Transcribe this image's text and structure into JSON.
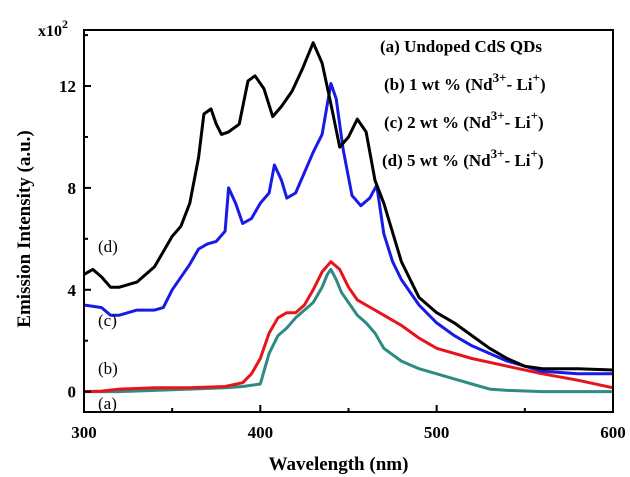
{
  "chart_data": {
    "type": "line",
    "xlabel": "Wavelength (nm)",
    "ylabel": "Emission Intensity (a.u.)",
    "y_multiplier": {
      "base": "x10",
      "exp": "2"
    },
    "xlim": [
      300,
      600
    ],
    "ylim": [
      -0.8,
      14.2
    ],
    "xticks": [
      300,
      400,
      500,
      600
    ],
    "yticks": [
      0,
      4,
      8,
      12
    ],
    "xtick_labels": [
      "300",
      "400",
      "500",
      "600"
    ],
    "ytick_labels": [
      "0",
      "4",
      "8",
      "12"
    ],
    "grid": false,
    "legend_position": "top-right",
    "legend": [
      {
        "text": "(a) Undoped CdS QDs"
      },
      {
        "prefix": "(b) 1 wt % (Nd",
        "sup1": "3+",
        "mid": "- Li",
        "sup2": "+",
        "suffix": ")"
      },
      {
        "prefix": "(c) 2 wt % (Nd",
        "sup1": "3+",
        "mid": "- Li",
        "sup2": "+",
        "suffix": ")"
      },
      {
        "prefix": "(d) 5 wt % (Nd",
        "sup1": "3+",
        "mid": "- Li",
        "sup2": "+",
        "suffix": ")"
      }
    ],
    "curve_labels": [
      "(a)",
      "(b)",
      "(c)",
      "(d)"
    ],
    "series": [
      {
        "id": "a",
        "color": "#2e8b84",
        "x": [
          300,
          320,
          340,
          360,
          380,
          390,
          400,
          405,
          410,
          415,
          420,
          425,
          430,
          435,
          438,
          440,
          443,
          446,
          450,
          455,
          460,
          465,
          470,
          480,
          490,
          500,
          510,
          520,
          530,
          540,
          560,
          580,
          600
        ],
        "y": [
          0.0,
          0.0,
          0.05,
          0.1,
          0.15,
          0.2,
          0.3,
          1.5,
          2.2,
          2.5,
          2.9,
          3.2,
          3.5,
          4.1,
          4.6,
          4.8,
          4.4,
          3.9,
          3.5,
          3.0,
          2.7,
          2.3,
          1.7,
          1.2,
          0.9,
          0.7,
          0.5,
          0.3,
          0.1,
          0.05,
          0.0,
          0.0,
          0.0
        ]
      },
      {
        "id": "b",
        "color": "#e8141c",
        "x": [
          300,
          310,
          320,
          340,
          360,
          380,
          390,
          395,
          400,
          405,
          410,
          415,
          420,
          425,
          430,
          435,
          440,
          445,
          450,
          455,
          460,
          470,
          480,
          490,
          500,
          520,
          540,
          560,
          580,
          600
        ],
        "y": [
          0.0,
          0.02,
          0.1,
          0.15,
          0.15,
          0.2,
          0.35,
          0.7,
          1.3,
          2.3,
          2.9,
          3.1,
          3.1,
          3.4,
          4.0,
          4.7,
          5.1,
          4.8,
          4.1,
          3.6,
          3.4,
          3.0,
          2.6,
          2.1,
          1.7,
          1.3,
          1.0,
          0.7,
          0.45,
          0.15
        ]
      },
      {
        "id": "c",
        "color": "#1a1ae6",
        "x": [
          300,
          310,
          315,
          320,
          330,
          340,
          345,
          350,
          360,
          365,
          370,
          375,
          380,
          382,
          386,
          390,
          395,
          400,
          405,
          408,
          412,
          415,
          420,
          425,
          430,
          435,
          440,
          443,
          447,
          452,
          457,
          462,
          466,
          470,
          475,
          480,
          490,
          500,
          510,
          520,
          540,
          560,
          580,
          600
        ],
        "y": [
          3.4,
          3.3,
          3.0,
          3.0,
          3.2,
          3.2,
          3.3,
          4.0,
          5.0,
          5.6,
          5.8,
          5.9,
          6.3,
          8.0,
          7.4,
          6.6,
          6.8,
          7.4,
          7.8,
          8.9,
          8.3,
          7.6,
          7.8,
          8.6,
          9.4,
          10.1,
          12.1,
          11.5,
          9.5,
          7.7,
          7.3,
          7.6,
          8.1,
          6.2,
          5.1,
          4.4,
          3.4,
          2.7,
          2.2,
          1.8,
          1.2,
          0.8,
          0.7,
          0.7
        ]
      },
      {
        "id": "d",
        "color": "#000000",
        "x": [
          300,
          305,
          310,
          315,
          320,
          330,
          340,
          350,
          355,
          360,
          365,
          368,
          372,
          375,
          378,
          382,
          388,
          393,
          397,
          402,
          407,
          412,
          418,
          424,
          430,
          435,
          440,
          445,
          450,
          455,
          460,
          465,
          470,
          480,
          490,
          500,
          510,
          520,
          530,
          540,
          550,
          560,
          580,
          600
        ],
        "y": [
          4.6,
          4.8,
          4.5,
          4.1,
          4.1,
          4.3,
          4.9,
          6.1,
          6.5,
          7.4,
          9.2,
          10.9,
          11.1,
          10.5,
          10.1,
          10.2,
          10.5,
          12.2,
          12.4,
          11.9,
          10.8,
          11.2,
          11.8,
          12.7,
          13.7,
          12.9,
          11.3,
          9.6,
          10.0,
          10.7,
          10.2,
          8.3,
          7.4,
          5.1,
          3.7,
          3.1,
          2.7,
          2.2,
          1.7,
          1.3,
          1.0,
          0.9,
          0.9,
          0.85
        ]
      }
    ]
  }
}
